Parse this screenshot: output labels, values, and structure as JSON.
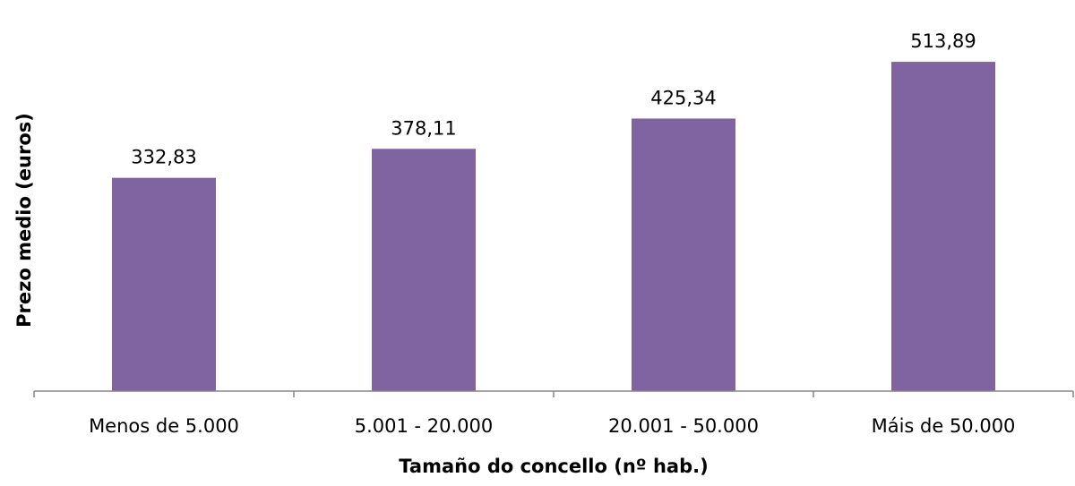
{
  "chart_data": {
    "type": "bar",
    "categories": [
      "Menos de 5.000",
      "5.001 - 20.000",
      "20.001 - 50.000",
      "Máis de 50.000"
    ],
    "values": [
      332.83,
      378.11,
      425.34,
      513.89
    ],
    "data_labels": [
      "332,83",
      "378,11",
      "425,34",
      "513,89"
    ],
    "title": "",
    "xlabel": "Tamaño do concello (nº hab.)",
    "ylabel": "Prezo medio (euros)",
    "ylim": [
      0,
      510
    ],
    "grid": false,
    "legend": "none",
    "bar_color": "#8064A2",
    "axis_color": "#868686"
  }
}
